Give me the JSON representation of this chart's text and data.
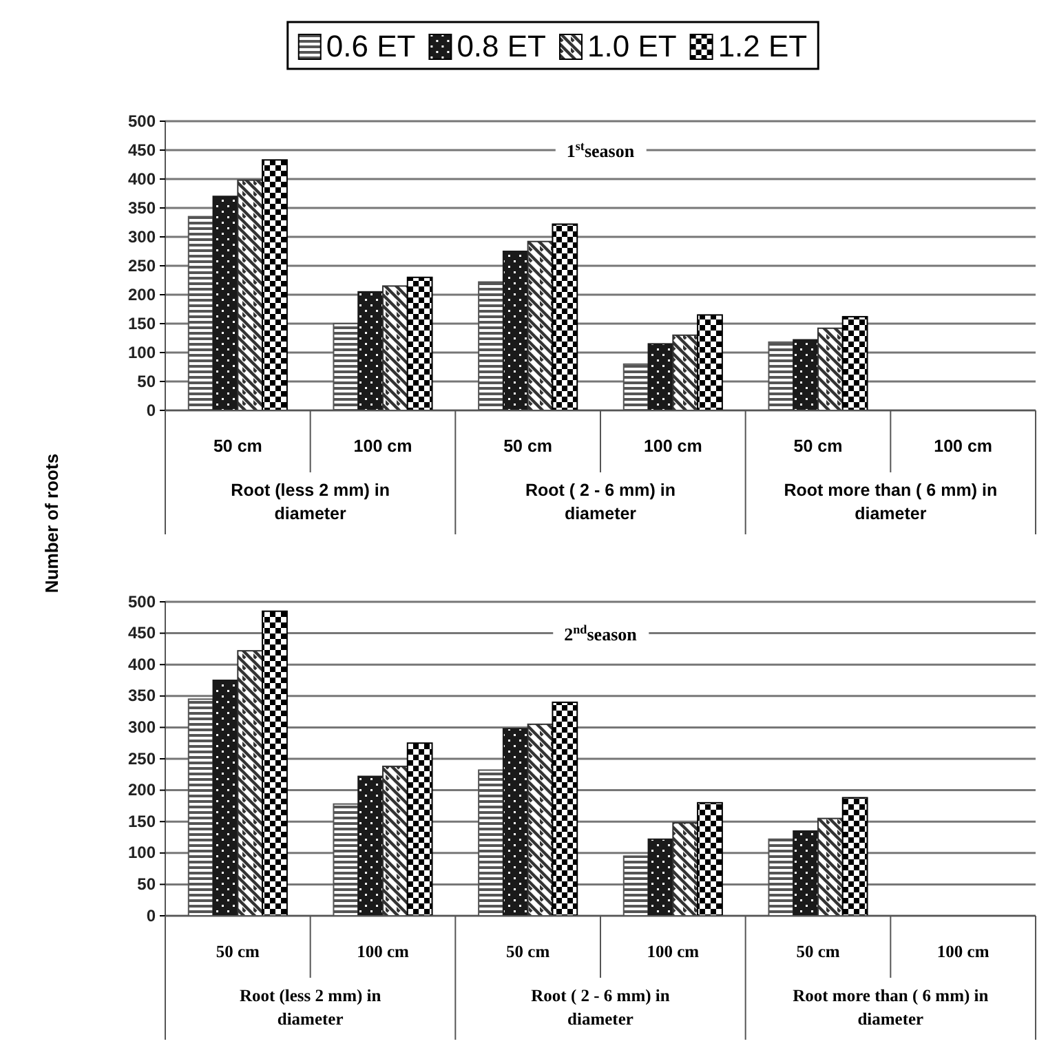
{
  "chart_data": [
    {
      "type": "bar",
      "ylabel": "Number of roots",
      "legend": "top",
      "grid": "y",
      "ylim": [
        0,
        500
      ],
      "yticks": [
        0,
        50,
        100,
        150,
        200,
        250,
        300,
        350,
        400,
        450,
        500
      ],
      "categories": [
        "50 cm",
        "100 cm",
        "50 cm",
        "100 cm",
        "50 cm",
        "100 cm"
      ],
      "annotations": [
        "1$^{st}$season",
        "Root (less 2 mm) in diameter",
        "Root ( 2 - 6 mm) in diameter",
        "Root more than ( 6 mm) in diameter"
      ],
      "series": [
        {
          "name": "0.6 ET",
          "color": "#555555",
          "values": [
            335,
            150,
            222,
            80,
            118,
            null
          ]
        },
        {
          "name": "0.8 ET",
          "color": "#1a1a1a",
          "values": [
            370,
            205,
            275,
            115,
            122,
            null
          ]
        },
        {
          "name": "1.0 ET",
          "color": "#333333",
          "values": [
            398,
            215,
            292,
            130,
            142,
            null
          ]
        },
        {
          "name": "1.2 ET",
          "color": "#000000",
          "values": [
            433,
            230,
            322,
            165,
            162,
            null
          ]
        }
      ]
    },
    {
      "type": "bar",
      "grid": "y",
      "ylim": [
        0,
        500
      ],
      "yticks": [
        0,
        50,
        100,
        150,
        200,
        250,
        300,
        350,
        400,
        450,
        500
      ],
      "categories": [
        "50 cm",
        "100 cm",
        "50 cm",
        "100 cm",
        "50 cm",
        "100 cm"
      ],
      "annotations": [
        "2$^{nd}$season",
        "Root (less 2 mm) in diameter",
        "Root ( 2 - 6 mm) in diameter",
        "Root more than ( 6 mm) in diameter"
      ],
      "series": [
        {
          "color": "#555555",
          "values": [
            345,
            178,
            232,
            95,
            122,
            null
          ]
        },
        {
          "color": "#1a1a1a",
          "values": [
            375,
            222,
            298,
            122,
            135,
            null
          ]
        },
        {
          "color": "#333333",
          "values": [
            422,
            238,
            305,
            148,
            155,
            null
          ]
        },
        {
          "color": "#000000",
          "values": [
            485,
            275,
            340,
            180,
            188,
            null
          ]
        }
      ]
    }
  ]
}
